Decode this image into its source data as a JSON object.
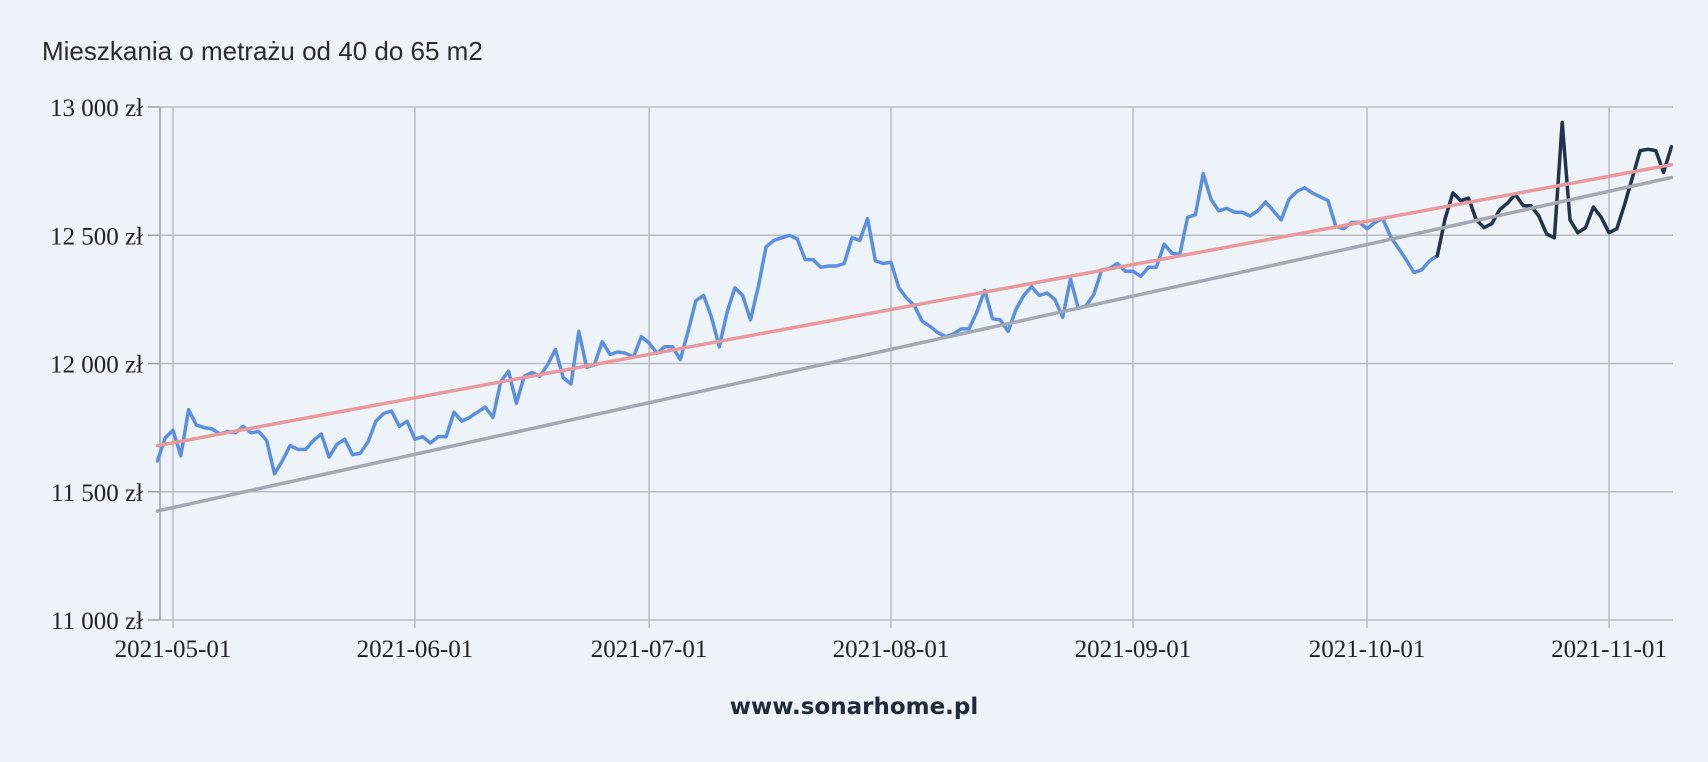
{
  "title": "Mieszkania o metrażu od 40 do 65 m2",
  "footer": "www.sonarhome.pl",
  "chart_data": {
    "type": "line",
    "title": "Mieszkania o metrażu od 40 do 65 m2",
    "xlabel": "",
    "ylabel": "",
    "ylim": [
      11000,
      13000
    ],
    "xlim": [
      "2021-04-29",
      "2021-11-03"
    ],
    "y_ticks": [
      11000,
      11500,
      12000,
      12500,
      13000
    ],
    "y_tick_labels": [
      "11 000 zł",
      "11 500 zł",
      "12 000 zł",
      "12 500 zł",
      "13 000 zł"
    ],
    "x_ticks": [
      "2021-05-01",
      "2021-06-01",
      "2021-07-01",
      "2021-08-01",
      "2021-09-01",
      "2021-10-01",
      "2021-11-01"
    ],
    "grid": true,
    "colors": {
      "history": "#5b8fe0",
      "recent": "#22344d",
      "trend_red": "#e8999b",
      "trend_gray": "#a3a8b2",
      "grid": "#b8bcc4",
      "axis": "#9aa0a8"
    },
    "series": [
      {
        "role": "history",
        "x": [
          "2021-04-29",
          "2021-04-30",
          "2021-05-01",
          "2021-05-02",
          "2021-05-03",
          "2021-05-04",
          "2021-05-05",
          "2021-05-06",
          "2021-05-07",
          "2021-05-08",
          "2021-05-09",
          "2021-05-10",
          "2021-05-11",
          "2021-05-12",
          "2021-05-13",
          "2021-05-14",
          "2021-05-15",
          "2021-05-16",
          "2021-05-17",
          "2021-05-18",
          "2021-05-19",
          "2021-05-20",
          "2021-05-21",
          "2021-05-22",
          "2021-05-23",
          "2021-05-24",
          "2021-05-25",
          "2021-05-26",
          "2021-05-27",
          "2021-05-28",
          "2021-05-29",
          "2021-05-30",
          "2021-05-31",
          "2021-06-01",
          "2021-06-02",
          "2021-06-03",
          "2021-06-04",
          "2021-06-05",
          "2021-06-06",
          "2021-06-07",
          "2021-06-08",
          "2021-06-09",
          "2021-06-10",
          "2021-06-11",
          "2021-06-12",
          "2021-06-13",
          "2021-06-14",
          "2021-06-15",
          "2021-06-16",
          "2021-06-17",
          "2021-06-18",
          "2021-06-19",
          "2021-06-20",
          "2021-06-21",
          "2021-06-22",
          "2021-06-23",
          "2021-06-24",
          "2021-06-25",
          "2021-06-26",
          "2021-06-27",
          "2021-06-28",
          "2021-06-29",
          "2021-06-30",
          "2021-07-01",
          "2021-07-02",
          "2021-07-03",
          "2021-07-04",
          "2021-07-05",
          "2021-07-06",
          "2021-07-07",
          "2021-07-08",
          "2021-07-09",
          "2021-07-10",
          "2021-07-11",
          "2021-07-12",
          "2021-07-13",
          "2021-07-14",
          "2021-07-15",
          "2021-07-16",
          "2021-07-17",
          "2021-07-18",
          "2021-07-19",
          "2021-07-20",
          "2021-07-21",
          "2021-07-22",
          "2021-07-23",
          "2021-07-24",
          "2021-07-25",
          "2021-07-26",
          "2021-07-27",
          "2021-07-28",
          "2021-07-29",
          "2021-07-30",
          "2021-07-31",
          "2021-08-01",
          "2021-08-02",
          "2021-08-03",
          "2021-08-04",
          "2021-08-05",
          "2021-08-06",
          "2021-08-07",
          "2021-08-08",
          "2021-08-09",
          "2021-08-10",
          "2021-08-11",
          "2021-08-12",
          "2021-08-13",
          "2021-08-14",
          "2021-08-15",
          "2021-08-16",
          "2021-08-17",
          "2021-08-18",
          "2021-08-19",
          "2021-08-20",
          "2021-08-21",
          "2021-08-22",
          "2021-08-23",
          "2021-08-24",
          "2021-08-25",
          "2021-08-26",
          "2021-08-27",
          "2021-08-28",
          "2021-08-29",
          "2021-08-30",
          "2021-08-31",
          "2021-09-01",
          "2021-09-02",
          "2021-09-03",
          "2021-09-04",
          "2021-09-05",
          "2021-09-06",
          "2021-09-07",
          "2021-09-08",
          "2021-09-09",
          "2021-09-10",
          "2021-09-11",
          "2021-09-12",
          "2021-09-13",
          "2021-09-14",
          "2021-09-15",
          "2021-09-16",
          "2021-09-17",
          "2021-09-18",
          "2021-09-19",
          "2021-09-20",
          "2021-09-21",
          "2021-09-22",
          "2021-09-23",
          "2021-09-24",
          "2021-09-25",
          "2021-09-26",
          "2021-09-27",
          "2021-09-28",
          "2021-09-29",
          "2021-09-30",
          "2021-10-01",
          "2021-10-02",
          "2021-10-03",
          "2021-10-04",
          "2021-10-05",
          "2021-10-06",
          "2021-10-07",
          "2021-10-08",
          "2021-10-09",
          "2021-10-10"
        ],
        "values": [
          11620,
          11710,
          11740,
          11640,
          11820,
          11760,
          11750,
          11745,
          11725,
          11735,
          11730,
          11755,
          11730,
          11735,
          11700,
          11570,
          11620,
          11680,
          11665,
          11665,
          11700,
          11725,
          11635,
          11685,
          11705,
          11645,
          11650,
          11695,
          11775,
          11805,
          11815,
          11755,
          11775,
          11705,
          11715,
          11690,
          11715,
          11715,
          11810,
          11775,
          11790,
          11810,
          11830,
          11790,
          11930,
          11970,
          11845,
          11950,
          11965,
          11950,
          11995,
          12055,
          11945,
          11920,
          12125,
          11985,
          11995,
          12085,
          12035,
          12045,
          12040,
          12025,
          12105,
          12080,
          12040,
          12065,
          12065,
          12015,
          12125,
          12245,
          12265,
          12180,
          12065,
          12200,
          12295,
          12265,
          12170,
          12300,
          12455,
          12480,
          12490,
          12500,
          12485,
          12405,
          12405,
          12375,
          12380,
          12380,
          12390,
          12490,
          12480,
          12565,
          12400,
          12390,
          12395,
          12295,
          12255,
          12225,
          12165,
          12145,
          12120,
          12105,
          12115,
          12135,
          12135,
          12200,
          12285,
          12175,
          12170,
          12125,
          12210,
          12265,
          12300,
          12265,
          12275,
          12250,
          12180,
          12330,
          12215,
          12225,
          12270,
          12365,
          12370,
          12390,
          12360,
          12360,
          12340,
          12375,
          12375,
          12465,
          12430,
          12425,
          12570,
          12580,
          12740,
          12640,
          12595,
          12605,
          12590,
          12590,
          12575,
          12595,
          12630,
          12595,
          12560,
          12640,
          12670,
          12685,
          12665,
          12650,
          12635,
          12535,
          12525,
          12550,
          12550,
          12525,
          12550,
          12565,
          12495,
          12450,
          12405,
          12355,
          12365,
          12400,
          12420
        ]
      },
      {
        "role": "recent",
        "x": [
          "2021-10-10",
          "2021-10-11",
          "2021-10-12",
          "2021-10-13",
          "2021-10-14",
          "2021-10-15",
          "2021-10-16",
          "2021-10-17",
          "2021-10-18",
          "2021-10-19",
          "2021-10-20",
          "2021-10-21",
          "2021-10-22",
          "2021-10-23",
          "2021-10-24",
          "2021-10-25",
          "2021-10-26",
          "2021-10-27",
          "2021-10-28",
          "2021-10-29",
          "2021-10-30",
          "2021-10-31",
          "2021-11-01",
          "2021-11-02",
          "2021-11-03",
          "2021-11-04",
          "2021-11-05",
          "2021-11-06",
          "2021-11-07",
          "2021-11-08",
          "2021-11-09"
        ],
        "values": [
          12420,
          12565,
          12665,
          12635,
          12645,
          12560,
          12530,
          12545,
          12600,
          12625,
          12660,
          12615,
          12615,
          12575,
          12505,
          12490,
          12940,
          12560,
          12510,
          12530,
          12610,
          12570,
          12510,
          12525,
          12620,
          12725,
          12830,
          12835,
          12830,
          12745,
          12845
        ]
      },
      {
        "role": "trend",
        "x": [
          "2021-04-29",
          "2021-11-09"
        ],
        "values": [
          11680,
          12775
        ]
      },
      {
        "role": "trend",
        "x": [
          "2021-04-29",
          "2021-11-09"
        ],
        "values": [
          11425,
          12725
        ]
      }
    ]
  }
}
